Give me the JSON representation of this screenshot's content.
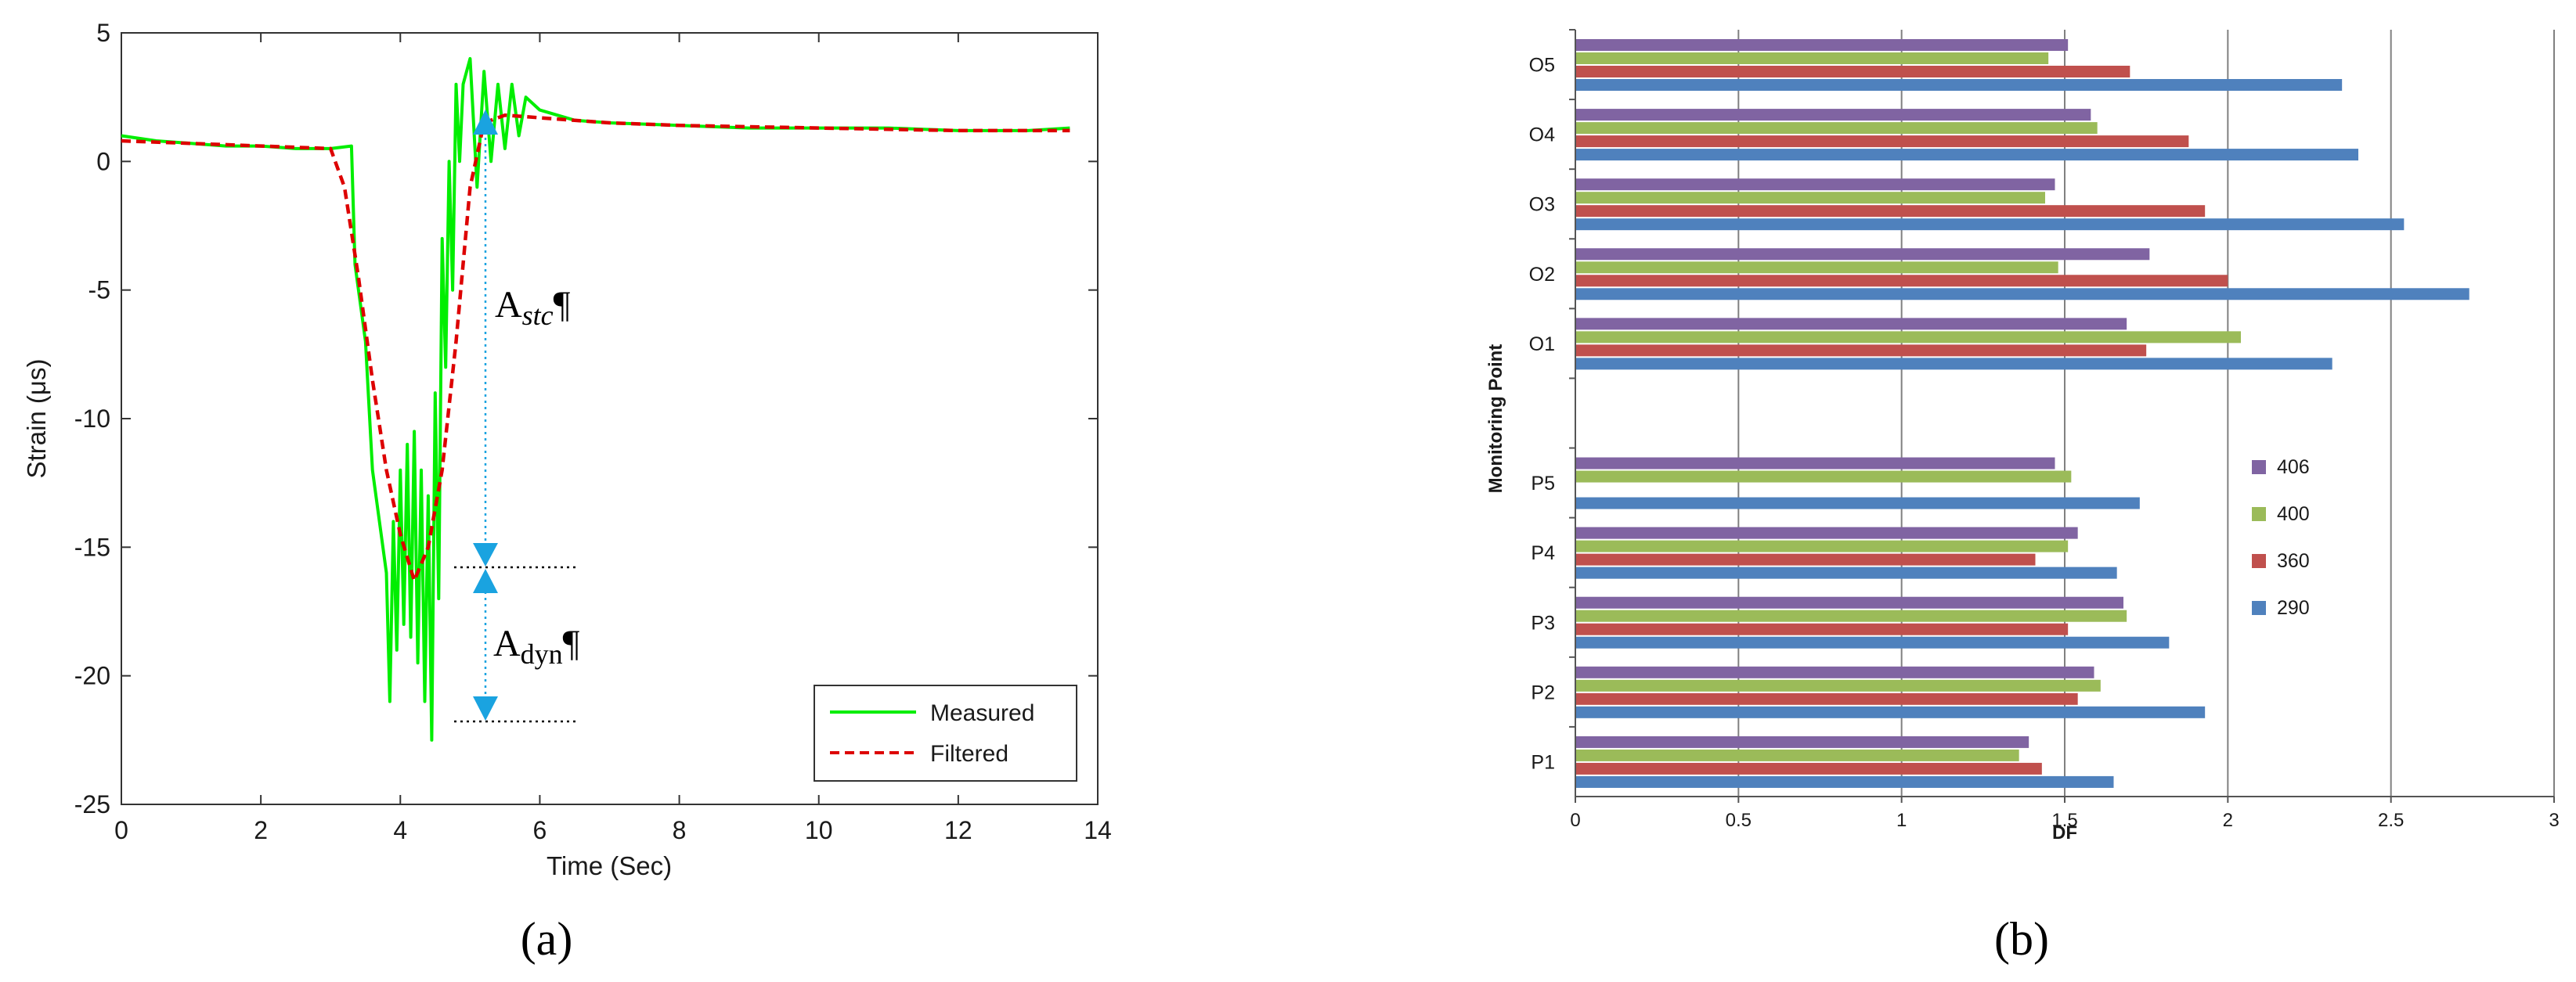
{
  "chart_data": [
    {
      "type": "line",
      "panel_label": "(a)",
      "xlabel": "Time (Sec)",
      "ylabel": "Strain (μs)",
      "xlim": [
        0,
        14
      ],
      "ylim": [
        -25,
        5
      ],
      "xticks": [
        "0",
        "2",
        "4",
        "6",
        "8",
        "10",
        "12",
        "14"
      ],
      "yticks": [
        "5",
        "0",
        "-5",
        "-10",
        "-15",
        "-20",
        "-25"
      ],
      "grid": false,
      "legend_position": "bottom-right",
      "series": [
        {
          "name": "Measured",
          "color": "#00ee00",
          "style": "solid",
          "x": [
            0,
            0.5,
            1,
            1.5,
            2,
            2.5,
            3,
            3.3,
            3.35,
            3.5,
            3.6,
            3.7,
            3.8,
            3.85,
            3.9,
            3.95,
            4.0,
            4.05,
            4.1,
            4.15,
            4.2,
            4.25,
            4.3,
            4.35,
            4.4,
            4.45,
            4.5,
            4.55,
            4.6,
            4.65,
            4.7,
            4.75,
            4.8,
            4.85,
            4.9,
            5.0,
            5.1,
            5.2,
            5.3,
            5.4,
            5.5,
            5.6,
            5.7,
            5.8,
            6,
            6.5,
            7,
            8,
            9,
            10,
            11,
            12,
            13,
            13.6
          ],
          "y": [
            1.0,
            0.8,
            0.7,
            0.6,
            0.6,
            0.5,
            0.5,
            0.6,
            -4.0,
            -7.0,
            -12.0,
            -14.0,
            -16.0,
            -21.0,
            -14.0,
            -19.0,
            -12.0,
            -18.0,
            -11.0,
            -18.5,
            -10.5,
            -19.5,
            -12.0,
            -21.0,
            -13.0,
            -22.5,
            -9.0,
            -17.0,
            -3.0,
            -8.0,
            0.0,
            -5.0,
            3.0,
            0.0,
            3.0,
            4.0,
            -1.0,
            3.5,
            0.0,
            3.0,
            0.5,
            3.0,
            1.0,
            2.5,
            2.0,
            1.6,
            1.5,
            1.4,
            1.3,
            1.3,
            1.3,
            1.2,
            1.2,
            1.3
          ]
        },
        {
          "name": "Filtered",
          "color": "#dd0000",
          "style": "dashed",
          "x": [
            0,
            1,
            2,
            3.0,
            3.2,
            3.4,
            3.6,
            3.8,
            4.0,
            4.2,
            4.4,
            4.6,
            4.8,
            5.0,
            5.2,
            5.5,
            6,
            7,
            8,
            10,
            12,
            13.6
          ],
          "y": [
            0.8,
            0.7,
            0.6,
            0.5,
            -1.0,
            -4.5,
            -8.5,
            -12.0,
            -14.5,
            -16.3,
            -15.0,
            -12.0,
            -7.0,
            -1.0,
            1.5,
            1.8,
            1.7,
            1.5,
            1.4,
            1.3,
            1.2,
            1.2
          ]
        }
      ],
      "annotations": [
        {
          "label_main": "A",
          "label_sub": "stc",
          "suffix": "¶"
        },
        {
          "label_main": "A",
          "label_sub": "dyn",
          "suffix": "¶"
        }
      ]
    },
    {
      "type": "bar",
      "orientation": "horizontal",
      "panel_label": "(b)",
      "xlabel": "DF",
      "ylabel": "Monitoring Point",
      "xlim": [
        0,
        3
      ],
      "xticks": [
        "0",
        "0.5",
        "1",
        "1.5",
        "2",
        "2.5",
        "3"
      ],
      "grid": true,
      "legend_position": "right",
      "categories": [
        "O5",
        "O4",
        "O3",
        "O2",
        "O1",
        "",
        "P5",
        "P4",
        "P3",
        "P2",
        "P1"
      ],
      "series": [
        {
          "name": "406",
          "color": "#8064a2",
          "values": [
            1.51,
            1.58,
            1.47,
            1.76,
            1.69,
            null,
            1.47,
            1.54,
            1.68,
            1.59,
            1.39
          ]
        },
        {
          "name": "400",
          "color": "#9bbb59",
          "values": [
            1.45,
            1.6,
            1.44,
            1.48,
            2.04,
            null,
            1.52,
            1.51,
            1.69,
            1.61,
            1.36
          ]
        },
        {
          "name": "360",
          "color": "#c0504d",
          "values": [
            1.7,
            1.88,
            1.93,
            2.0,
            1.75,
            null,
            0,
            1.41,
            1.51,
            1.54,
            1.43
          ]
        },
        {
          "name": "290",
          "color": "#4f81bd",
          "values": [
            2.35,
            2.4,
            2.54,
            2.74,
            2.32,
            null,
            1.73,
            1.66,
            1.82,
            1.93,
            1.65
          ]
        }
      ]
    }
  ]
}
